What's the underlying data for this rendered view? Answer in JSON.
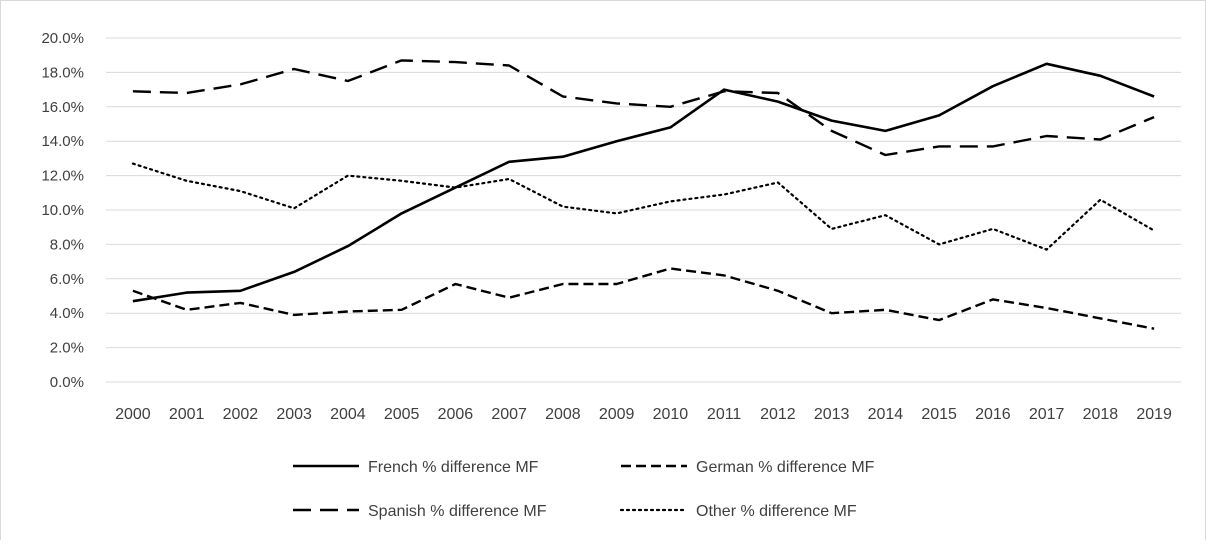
{
  "chart_data": {
    "type": "line",
    "title": "",
    "xlabel": "",
    "ylabel": "",
    "categories": [
      "2000",
      "2001",
      "2002",
      "2003",
      "2004",
      "2005",
      "2006",
      "2007",
      "2008",
      "2009",
      "2010",
      "2011",
      "2012",
      "2013",
      "2014",
      "2015",
      "2016",
      "2017",
      "2018",
      "2019"
    ],
    "ylim": [
      0,
      20
    ],
    "ytick_values": [
      0,
      2,
      4,
      6,
      8,
      10,
      12,
      14,
      16,
      18,
      20
    ],
    "ytick_labels": [
      "0.0%",
      "2.0%",
      "4.0%",
      "6.0%",
      "8.0%",
      "10.0%",
      "12.0%",
      "14.0%",
      "16.0%",
      "18.0%",
      "20.0%"
    ],
    "grid": "horizontal",
    "legend_position": "bottom",
    "series": [
      {
        "name": "French % difference MF",
        "line_style": "solid",
        "values": [
          4.7,
          5.2,
          5.3,
          6.4,
          7.9,
          9.8,
          11.3,
          12.8,
          13.1,
          14.0,
          14.8,
          17.0,
          16.3,
          15.2,
          14.6,
          15.5,
          17.2,
          18.5,
          17.8,
          16.6
        ]
      },
      {
        "name": "German % difference MF",
        "line_style": "dashed-short",
        "values": [
          5.3,
          4.2,
          4.6,
          3.9,
          4.1,
          4.2,
          5.7,
          4.9,
          5.7,
          5.7,
          6.6,
          6.2,
          5.3,
          4.0,
          4.2,
          3.6,
          4.8,
          4.3,
          3.7,
          3.1
        ]
      },
      {
        "name": "Spanish % difference MF",
        "line_style": "dashed-long",
        "values": [
          16.9,
          16.8,
          17.3,
          18.2,
          17.5,
          18.7,
          18.6,
          18.4,
          16.6,
          16.2,
          16.0,
          16.9,
          16.8,
          14.6,
          13.2,
          13.7,
          13.7,
          14.3,
          14.1,
          15.4
        ]
      },
      {
        "name": "Other % difference MF",
        "line_style": "dotted",
        "values": [
          12.7,
          11.7,
          11.1,
          10.1,
          12.0,
          11.7,
          11.3,
          11.8,
          10.2,
          9.8,
          10.5,
          10.9,
          11.6,
          8.9,
          9.7,
          8.0,
          8.9,
          7.7,
          10.6,
          8.8
        ]
      }
    ]
  },
  "styles": {
    "line_color": "#000000",
    "grid_color": "#d9d9d9",
    "text_color": "#404040"
  }
}
